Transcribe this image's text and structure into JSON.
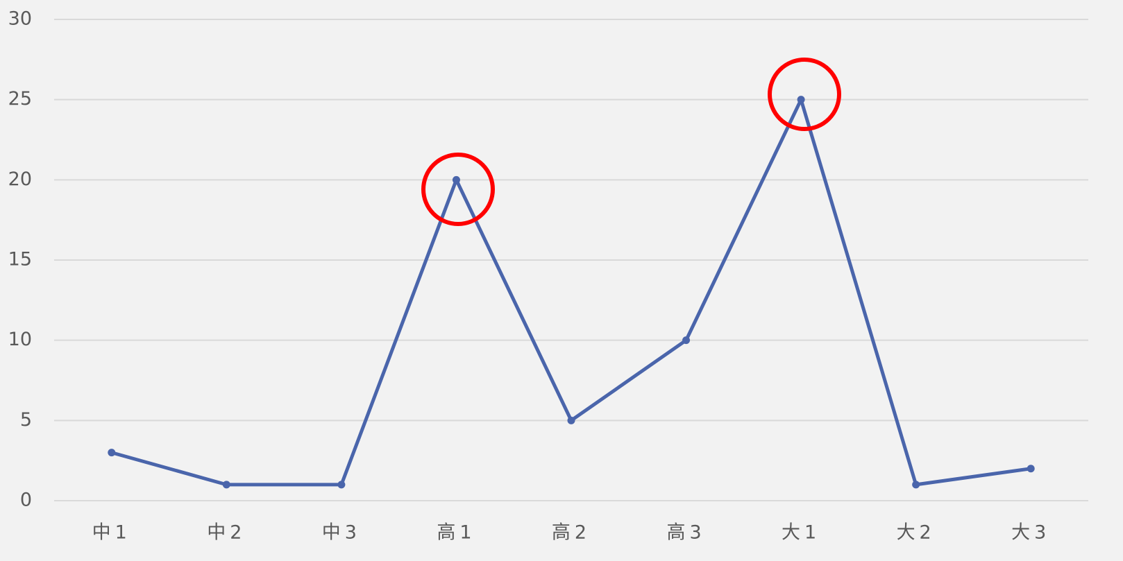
{
  "chart_data": {
    "type": "line",
    "categories": [
      "中1",
      "中2",
      "中3",
      "高1",
      "高2",
      "高3",
      "大1",
      "大2",
      "大3"
    ],
    "series": [
      {
        "name": null,
        "color": "#4a65ab",
        "values": [
          3,
          1,
          1,
          20,
          5,
          10,
          25,
          1,
          2
        ]
      }
    ],
    "ylim": [
      0,
      30
    ],
    "yticks": [
      0,
      5,
      10,
      15,
      20,
      25,
      30
    ],
    "grid": true
  }
}
